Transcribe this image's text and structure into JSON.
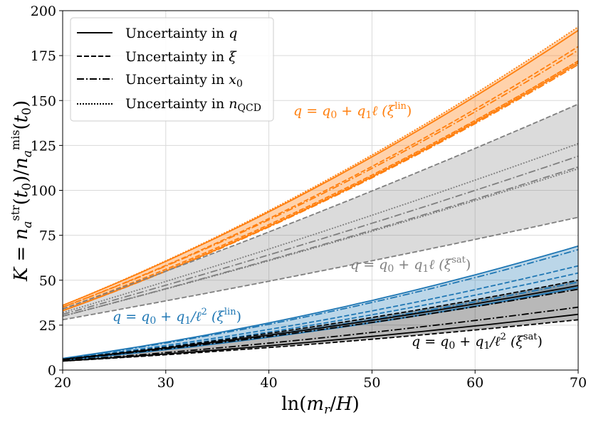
{
  "chart_data": {
    "type": "line",
    "title": "",
    "xlabel": "ln(m_r/H)",
    "ylabel": "K = n_a^str(t_0)/n_a^mis(t_0)",
    "xlim": [
      20,
      70
    ],
    "ylim": [
      0,
      200
    ],
    "xticks": [
      20,
      30,
      40,
      50,
      60,
      70
    ],
    "yticks": [
      0,
      25,
      50,
      75,
      100,
      125,
      150,
      175,
      200
    ],
    "grid": true,
    "legend_position": "top-left",
    "legend": [
      {
        "label": "Uncertainty in q",
        "style": "solid"
      },
      {
        "label": "Uncertainty in ξ",
        "style": "dashed"
      },
      {
        "label": "Uncertainty in x₀",
        "style": "dashdot"
      },
      {
        "label": "Uncertainty in n_QCD",
        "style": "dotted"
      }
    ],
    "annotations": [
      {
        "text": "q = q₀ + q₁ℓ (ξ^lin)",
        "color": "#ff7f0e",
        "at": [
          42,
          143
        ]
      },
      {
        "text": "q = q₀ + q₁ℓ (ξ^sat)",
        "color": "#7f7f7f",
        "at": [
          48,
          55
        ]
      },
      {
        "text": "q = q₀ + q₁/ℓ² (ξ^lin)",
        "color": "#1f77b4",
        "at": [
          25,
          26
        ]
      },
      {
        "text": "q = q₀ + q₁/ℓ² (ξ^sat)",
        "color": "#000000",
        "at": [
          54,
          13
        ]
      }
    ],
    "bands": [
      {
        "name": "orange band (ξ^lin, linear q)",
        "color": "#ff7f0e",
        "fill_opacity": 0.35,
        "x": [
          20,
          70
        ],
        "lower": [
          33,
          170
        ],
        "upper": [
          36,
          191
        ]
      },
      {
        "name": "gray band (ξ^sat, linear q)",
        "color": "#7f7f7f",
        "fill_opacity": 0.28,
        "x": [
          20,
          70
        ],
        "lower": [
          28,
          85
        ],
        "upper": [
          34,
          148
        ]
      },
      {
        "name": "blue band (ξ^lin, 1/ℓ² q)",
        "color": "#1f77b4",
        "fill_opacity": 0.3,
        "x": [
          20,
          70
        ],
        "lower": [
          5.5,
          45
        ],
        "upper": [
          6.5,
          69
        ]
      },
      {
        "name": "black band (ξ^sat, 1/ℓ² q)",
        "color": "#000000",
        "fill_opacity": 0.28,
        "x": [
          20,
          70
        ],
        "lower": [
          5,
          28
        ],
        "upper": [
          6,
          50
        ]
      }
    ],
    "series": [
      {
        "name": "orange solid upper",
        "color": "#ff7f0e",
        "style": "solid",
        "start": 36,
        "end": 189,
        "curv": 0.25
      },
      {
        "name": "orange solid lower",
        "color": "#ff7f0e",
        "style": "solid",
        "start": 33,
        "end": 171,
        "curv": 0.25
      },
      {
        "name": "orange dashed upper",
        "color": "#ff7f0e",
        "style": "dashed",
        "start": 35,
        "end": 180,
        "curv": 0.25
      },
      {
        "name": "orange dashed lower",
        "color": "#ff7f0e",
        "style": "dashed",
        "start": 34,
        "end": 172,
        "curv": 0.25
      },
      {
        "name": "orange dashdot upper",
        "color": "#ff7f0e",
        "style": "dashdot",
        "start": 35,
        "end": 178,
        "curv": 0.25
      },
      {
        "name": "orange dashdot lower",
        "color": "#ff7f0e",
        "style": "dashdot",
        "start": 33,
        "end": 170,
        "curv": 0.25
      },
      {
        "name": "orange dotted upper",
        "color": "#ff7f0e",
        "style": "dotted",
        "start": 36,
        "end": 191,
        "curv": 0.25
      },
      {
        "name": "orange dotted lower",
        "color": "#ff7f0e",
        "style": "dotted",
        "start": 33,
        "end": 172,
        "curv": 0.25
      },
      {
        "name": "gray dashed upper",
        "color": "#7f7f7f",
        "style": "dashed",
        "start": 34,
        "end": 148,
        "curv": 0.1
      },
      {
        "name": "gray dashed lower",
        "color": "#7f7f7f",
        "style": "dashed",
        "start": 28,
        "end": 85,
        "curv": 0.1
      },
      {
        "name": "gray dotted upper",
        "color": "#7f7f7f",
        "style": "dotted",
        "start": 32,
        "end": 126,
        "curv": 0.1
      },
      {
        "name": "gray dotted lower",
        "color": "#7f7f7f",
        "style": "dotted",
        "start": 30,
        "end": 112,
        "curv": 0.1
      },
      {
        "name": "gray dashdot upper",
        "color": "#7f7f7f",
        "style": "dashdot",
        "start": 31,
        "end": 119,
        "curv": 0.1
      },
      {
        "name": "gray dashdot lower",
        "color": "#7f7f7f",
        "style": "dashdot",
        "start": 30,
        "end": 113,
        "curv": 0.1
      },
      {
        "name": "blue solid upper",
        "color": "#1f77b4",
        "style": "solid",
        "start": 6.5,
        "end": 69,
        "curv": 0.35
      },
      {
        "name": "blue solid lower",
        "color": "#1f77b4",
        "style": "solid",
        "start": 5.5,
        "end": 46,
        "curv": 0.35
      },
      {
        "name": "blue dashed upper",
        "color": "#1f77b4",
        "style": "dashed",
        "start": 6.2,
        "end": 58,
        "curv": 0.35
      },
      {
        "name": "blue dashed lower",
        "color": "#1f77b4",
        "style": "dashed",
        "start": 6.0,
        "end": 54,
        "curv": 0.35
      },
      {
        "name": "blue dashdot upper",
        "color": "#1f77b4",
        "style": "dashdot",
        "start": 6.3,
        "end": 67,
        "curv": 0.35
      },
      {
        "name": "blue dashdot lower",
        "color": "#1f77b4",
        "style": "dashdot",
        "start": 5.8,
        "end": 49,
        "curv": 0.35
      },
      {
        "name": "black solid upper",
        "color": "#000000",
        "style": "solid",
        "start": 6,
        "end": 47,
        "curv": 0.3
      },
      {
        "name": "black solid lower",
        "color": "#000000",
        "style": "solid",
        "start": 5,
        "end": 31,
        "curv": 0.3
      },
      {
        "name": "black dashed upper",
        "color": "#000000",
        "style": "dashed",
        "start": 6,
        "end": 50,
        "curv": 0.3
      },
      {
        "name": "black dashed lower",
        "color": "#000000",
        "style": "dashed",
        "start": 5,
        "end": 28,
        "curv": 0.3
      },
      {
        "name": "black dashdot upper",
        "color": "#000000",
        "style": "dashdot",
        "start": 5.8,
        "end": 45,
        "curv": 0.3
      },
      {
        "name": "black dashdot lower",
        "color": "#000000",
        "style": "dashdot",
        "start": 5.2,
        "end": 35,
        "curv": 0.3
      }
    ]
  }
}
